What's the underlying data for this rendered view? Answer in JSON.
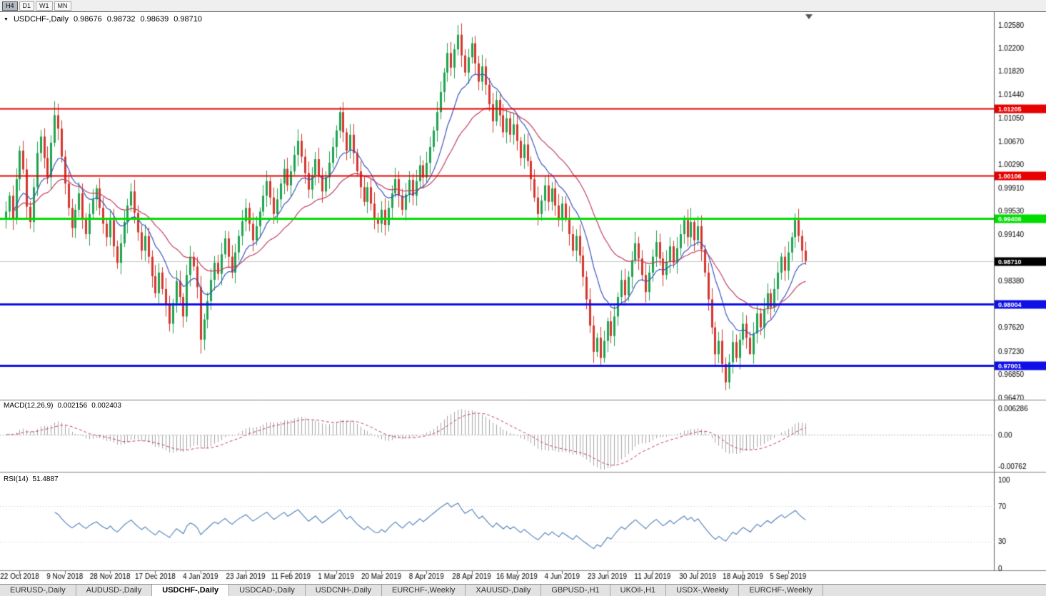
{
  "colors": {
    "bull": "#1EA34F",
    "bear": "#D4362E",
    "ma_fast": "#3A55C0",
    "ma_slow": "#C04060",
    "hline_red": "#E60000",
    "hline_green": "#00DC00",
    "hline_blue": "#0F0FE6",
    "rsi": "#4C7EB8",
    "macd_signal": "#C04060",
    "macd_hist": "#A6A6A6",
    "current_price_line": "#C8C8C8"
  },
  "toolbar": {
    "timeframes": [
      {
        "label": "H4",
        "active": true
      },
      {
        "label": "D1",
        "active": false
      },
      {
        "label": "W1",
        "active": false
      },
      {
        "label": "MN",
        "active": false
      }
    ]
  },
  "chart": {
    "dropdown_arrow": "▼",
    "symbol_label": "USDCHF-,Daily",
    "ohlc": {
      "open": "0.98676",
      "high": "0.98732",
      "low": "0.98639",
      "close": "0.98710"
    }
  },
  "indicators": {
    "macd": {
      "label": "MACD(12,26,9)",
      "value": "0.002156",
      "signal_value": "0.002403",
      "params": [
        12,
        26,
        9
      ],
      "ticks": [
        {
          "v": 0.006286,
          "label": "0.006286"
        },
        {
          "v": 0,
          "label": "0.00"
        },
        {
          "v": -0.00762,
          "label": "-0.00762"
        }
      ]
    },
    "rsi": {
      "label": "RSI(14)",
      "value": "51.4887",
      "period": 14,
      "levels": [
        70,
        30
      ],
      "ticks": [
        {
          "v": 100,
          "label": "100"
        },
        {
          "v": 70,
          "label": "70"
        },
        {
          "v": 30,
          "label": "30"
        },
        {
          "v": 0,
          "label": "0"
        }
      ]
    }
  },
  "chart_data": {
    "type": "candlestick",
    "symbol": "USDCHF",
    "timeframe": "Daily",
    "y_ticks": [
      "1.02580",
      "1.02200",
      "1.01820",
      "1.01440",
      "1.01050",
      "1.00670",
      "1.00290",
      "0.99910",
      "0.99530",
      "0.99140",
      "0.98380",
      "0.97620",
      "0.97230",
      "0.96850",
      "0.96470"
    ],
    "hlines": [
      {
        "price": 1.01205,
        "label": "1.01205",
        "color": "#E60000",
        "width": 2
      },
      {
        "price": 1.00106,
        "label": "1.00106",
        "color": "#E60000",
        "width": 2
      },
      {
        "price": 0.99406,
        "label": "0.99406",
        "color": "#00DC00",
        "width": 3
      },
      {
        "price": 0.98004,
        "label": "0.98004",
        "color": "#0F0FE6",
        "width": 3
      },
      {
        "price": 0.97001,
        "label": "0.97001",
        "color": "#0F0FE6",
        "width": 3
      }
    ],
    "current_price": {
      "value": 0.9871,
      "label": "0.98710"
    },
    "moving_averages": [
      {
        "period": 12,
        "color_key": "ma_fast"
      },
      {
        "period": 30,
        "color_key": "ma_slow"
      }
    ],
    "x_labels": [
      {
        "i": 4,
        "label": "22 Oct 2018"
      },
      {
        "i": 17,
        "label": "9 Nov 2018"
      },
      {
        "i": 30,
        "label": "28 Nov 2018"
      },
      {
        "i": 43,
        "label": "17 Dec 2018"
      },
      {
        "i": 56,
        "label": "4 Jan 2019"
      },
      {
        "i": 69,
        "label": "23 Jan 2019"
      },
      {
        "i": 82,
        "label": "11 Feb 2019"
      },
      {
        "i": 95,
        "label": "1 Mar 2019"
      },
      {
        "i": 108,
        "label": "20 Mar 2019"
      },
      {
        "i": 121,
        "label": "8 Apr 2019"
      },
      {
        "i": 134,
        "label": "28 Apr 2019"
      },
      {
        "i": 147,
        "label": "16 May 2019"
      },
      {
        "i": 160,
        "label": "4 Jun 2019"
      },
      {
        "i": 173,
        "label": "23 Jun 2019"
      },
      {
        "i": 186,
        "label": "11 Jul 2019"
      },
      {
        "i": 199,
        "label": "30 Jul 2019"
      },
      {
        "i": 212,
        "label": "18 Aug 2019"
      },
      {
        "i": 225,
        "label": "5 Sep 2019"
      }
    ],
    "first_open": 0.994,
    "closes": [
      0.9952,
      0.9978,
      0.994,
      1.0005,
      1.0052,
      1.0021,
      0.996,
      0.9935,
      0.9992,
      1.0048,
      1.0075,
      1.004,
      1.0008,
      1.0065,
      1.011,
      1.0088,
      1.0042,
      0.9998,
      0.9958,
      0.9925,
      0.9955,
      0.9982,
      0.9942,
      0.9915,
      0.9948,
      0.9972,
      0.999,
      0.9958,
      0.9932,
      0.991,
      0.9938,
      0.9895,
      0.9868,
      0.99,
      0.9935,
      0.9962,
      0.9985,
      0.995,
      0.9918,
      0.9888,
      0.9912,
      0.9878,
      0.9846,
      0.9818,
      0.9852,
      0.9825,
      0.9798,
      0.9768,
      0.9802,
      0.9838,
      0.9812,
      0.978,
      0.9848,
      0.9878,
      0.9862,
      0.9828,
      0.9742,
      0.9775,
      0.9805,
      0.984,
      0.9868,
      0.985,
      0.9882,
      0.9908,
      0.9878,
      0.9852,
      0.9885,
      0.9912,
      0.9936,
      0.9958,
      0.9932,
      0.9905,
      0.9928,
      0.9952,
      0.9978,
      1.0002,
      0.9975,
      0.9948,
      0.9972,
      0.9998,
      1.0022,
      0.9995,
      1.0018,
      1.0045,
      1.0068,
      1.0042,
      1.0015,
      0.9988,
      1.0012,
      1.0038,
      1.001,
      0.9985,
      1.0008,
      1.0032,
      1.0058,
      1.0085,
      1.0115,
      1.0082,
      1.0052,
      1.0078,
      1.0048,
      1.0018,
      0.9992,
      0.9968,
      0.9992,
      0.9965,
      0.994,
      0.9932,
      0.9955,
      0.993,
      0.9958,
      0.9982,
      1.0005,
      0.9978,
      0.9955,
      0.998,
      1.0004,
      0.9978,
      1.0002,
      1.0028,
      1.0008,
      1.0032,
      1.0058,
      1.0085,
      1.0115,
      1.0148,
      1.018,
      1.0212,
      1.0188,
      1.0218,
      1.0242,
      1.0208,
      1.018,
      1.0205,
      1.0228,
      1.0195,
      1.0165,
      1.019,
      1.016,
      1.0128,
      1.01,
      1.0135,
      1.011,
      1.0082,
      1.0105,
      1.0078,
      1.0095,
      1.0068,
      1.004,
      1.0062,
      1.0035,
      1.0005,
      0.9975,
      0.9948,
      0.997,
      0.9995,
      0.9968,
      0.999,
      0.9962,
      0.9938,
      0.9965,
      0.9942,
      0.9915,
      0.9888,
      0.9912,
      0.988,
      0.9845,
      0.9808,
      0.9765,
      0.9722,
      0.9745,
      0.9712,
      0.974,
      0.9772,
      0.9748,
      0.978,
      0.9812,
      0.984,
      0.9815,
      0.9845,
      0.9872,
      0.99,
      0.9875,
      0.9848,
      0.982,
      0.9852,
      0.9878,
      0.9902,
      0.9875,
      0.9848,
      0.987,
      0.9895,
      0.9868,
      0.9892,
      0.9915,
      0.9938,
      0.991,
      0.9935,
      0.9905,
      0.9928,
      0.989,
      0.9852,
      0.9808,
      0.9762,
      0.9718,
      0.974,
      0.9702,
      0.9672,
      0.9705,
      0.9738,
      0.9712,
      0.9742,
      0.9768,
      0.9745,
      0.9718,
      0.9752,
      0.9785,
      0.9762,
      0.9792,
      0.9818,
      0.9795,
      0.9825,
      0.9852,
      0.9878,
      0.9855,
      0.9885,
      0.991,
      0.9938,
      0.9912,
      0.9888,
      0.9871
    ],
    "wick_overrides": {
      "14": [
        1.0133,
        null
      ],
      "56": [
        null,
        0.9719
      ],
      "96": [
        1.0124,
        null
      ],
      "130": [
        1.0258,
        null
      ],
      "134": [
        1.0238,
        null
      ],
      "171": [
        null,
        0.97
      ],
      "197": [
        0.9958,
        null
      ],
      "207": [
        null,
        0.9659
      ],
      "214": [
        null,
        0.9733
      ],
      "227": [
        0.9949,
        null
      ]
    }
  },
  "tabs": [
    {
      "label": "EURUSD-,Daily",
      "active": false
    },
    {
      "label": "AUDUSD-,Daily",
      "active": false
    },
    {
      "label": "USDCHF-,Daily",
      "active": true
    },
    {
      "label": "USDCAD-,Daily",
      "active": false
    },
    {
      "label": "USDCNH-,Daily",
      "active": false
    },
    {
      "label": "EURCHF-,Weekly",
      "active": false
    },
    {
      "label": "XAUUSD-,Daily",
      "active": false
    },
    {
      "label": "GBPUSD-,H1",
      "active": false
    },
    {
      "label": "UKOil-,H1",
      "active": false
    },
    {
      "label": "USDX-,Weekly",
      "active": false
    },
    {
      "label": "EURCHF-,Weekly",
      "active": false
    }
  ]
}
